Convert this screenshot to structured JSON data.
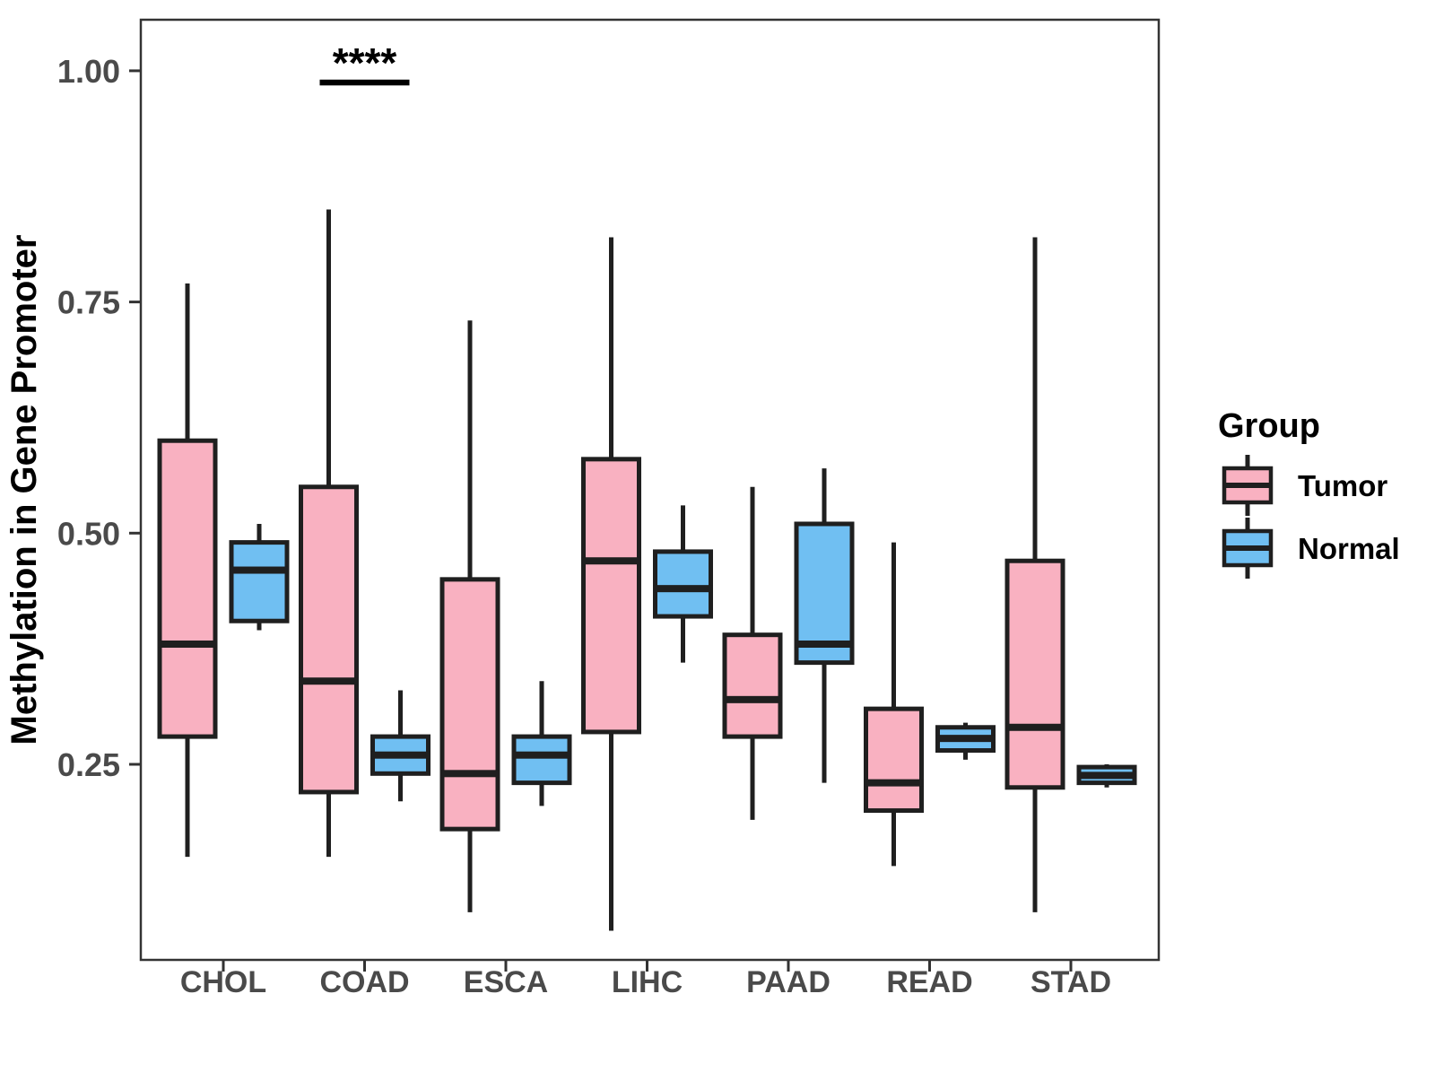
{
  "figure": {
    "background_color": "#FFFFFF"
  },
  "chart_data": {
    "type": "boxplot",
    "title": "",
    "xlabel": "",
    "ylabel": "Methylation in Gene Promoter",
    "categories": [
      "CHOL",
      "COAD",
      "ESCA",
      "LIHC",
      "PAAD",
      "READ",
      "STAD"
    ],
    "y_ticks": [
      0.25,
      0.5,
      0.75,
      1.0
    ],
    "y_tick_labels": [
      "0.25",
      "0.50",
      "0.75",
      "1.00"
    ],
    "ylim": [
      0.03,
      1.06
    ],
    "grid": "off",
    "legend_position": "right",
    "legend": {
      "title": "Group",
      "entries": [
        {
          "label": "Tumor",
          "color": "#F9B1C1"
        },
        {
          "label": "Normal",
          "color": "#70BFF2"
        }
      ]
    },
    "colors": {
      "tumor_fill": "#F9B1C1",
      "normal_fill": "#70BFF2",
      "box_stroke": "#1F1F1F",
      "axis_stroke": "#333333",
      "tick_text": "#4A4A4A",
      "significance": "#000000"
    },
    "significance": {
      "label": "****",
      "category": "COAD",
      "between": [
        "Tumor",
        "Normal"
      ]
    },
    "series": [
      {
        "name": "Tumor",
        "color": "#F9B1C1",
        "boxes": [
          {
            "category": "CHOL",
            "whisker_low": 0.15,
            "q1": 0.28,
            "median": 0.38,
            "q3": 0.6,
            "whisker_high": 0.77
          },
          {
            "category": "COAD",
            "whisker_low": 0.15,
            "q1": 0.22,
            "median": 0.34,
            "q3": 0.55,
            "whisker_high": 0.85
          },
          {
            "category": "ESCA",
            "whisker_low": 0.09,
            "q1": 0.18,
            "median": 0.24,
            "q3": 0.45,
            "whisker_high": 0.73
          },
          {
            "category": "LIHC",
            "whisker_low": 0.07,
            "q1": 0.285,
            "median": 0.47,
            "q3": 0.58,
            "whisker_high": 0.82
          },
          {
            "category": "PAAD",
            "whisker_low": 0.19,
            "q1": 0.28,
            "median": 0.32,
            "q3": 0.39,
            "whisker_high": 0.55
          },
          {
            "category": "READ",
            "whisker_low": 0.14,
            "q1": 0.2,
            "median": 0.23,
            "q3": 0.31,
            "whisker_high": 0.49
          },
          {
            "category": "STAD",
            "whisker_low": 0.09,
            "q1": 0.225,
            "median": 0.29,
            "q3": 0.47,
            "whisker_high": 0.82
          }
        ]
      },
      {
        "name": "Normal",
        "color": "#70BFF2",
        "boxes": [
          {
            "category": "CHOL",
            "whisker_low": 0.395,
            "q1": 0.405,
            "median": 0.46,
            "q3": 0.49,
            "whisker_high": 0.51
          },
          {
            "category": "COAD",
            "whisker_low": 0.21,
            "q1": 0.24,
            "median": 0.26,
            "q3": 0.28,
            "whisker_high": 0.33
          },
          {
            "category": "ESCA",
            "whisker_low": 0.205,
            "q1": 0.23,
            "median": 0.26,
            "q3": 0.28,
            "whisker_high": 0.34
          },
          {
            "category": "LIHC",
            "whisker_low": 0.36,
            "q1": 0.41,
            "median": 0.44,
            "q3": 0.48,
            "whisker_high": 0.53
          },
          {
            "category": "PAAD",
            "whisker_low": 0.23,
            "q1": 0.36,
            "median": 0.38,
            "q3": 0.51,
            "whisker_high": 0.57
          },
          {
            "category": "READ",
            "whisker_low": 0.255,
            "q1": 0.265,
            "median": 0.278,
            "q3": 0.29,
            "whisker_high": 0.295
          },
          {
            "category": "STAD",
            "whisker_low": 0.225,
            "q1": 0.23,
            "median": 0.238,
            "q3": 0.247,
            "whisker_high": 0.25
          }
        ]
      }
    ]
  }
}
